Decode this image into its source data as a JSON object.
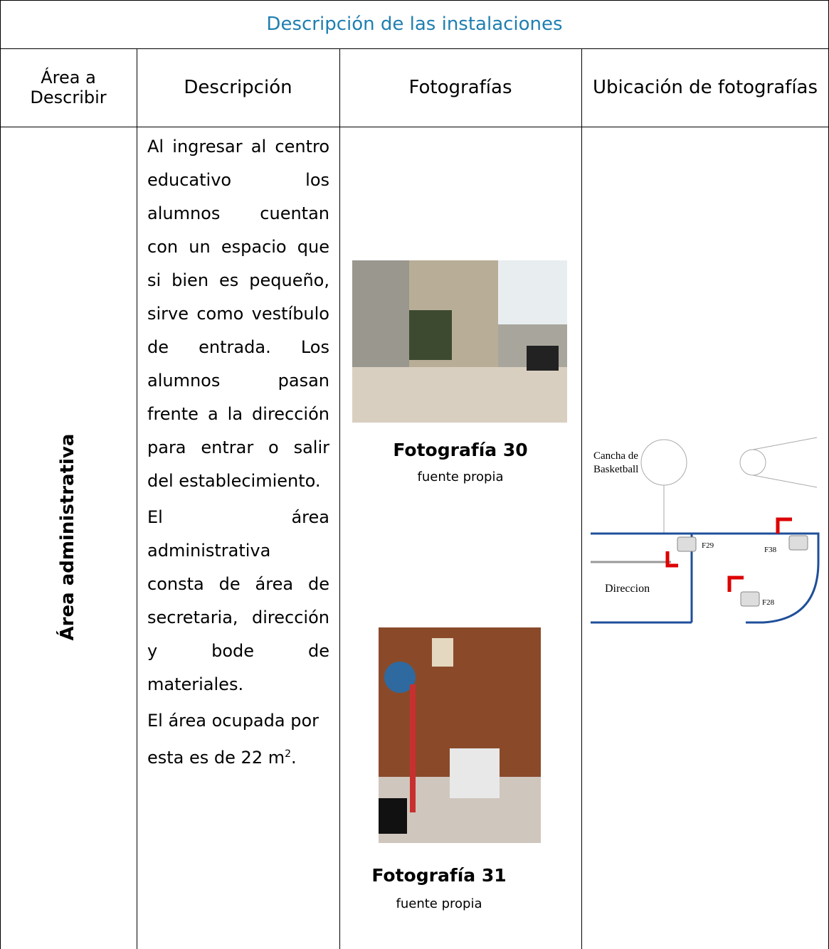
{
  "table": {
    "title": "Descripción de las instalaciones",
    "headers": [
      "Área a Describir",
      "Descripción",
      "Fotografías",
      "Ubicación de fotografías"
    ],
    "rows": [
      {
        "area": "Área administrativa",
        "description": [
          {
            "text": "Al ingresar al centro educativo los alumnos cuentan con un espacio que si bien es pequeño, sirve como vestíbulo de entrada. Los alumnos pasan frente a la dirección para entrar o salir del establecimiento."
          },
          {
            "text": "El área administrativa consta de área de secretaria, dirección y bode de materiales."
          },
          {
            "text": "El área ocupada por esta es de 22 m",
            "superscript": "2",
            "end": "."
          }
        ],
        "photos": [
          {
            "caption": "Fotografía 30",
            "source": "fuente propia"
          },
          {
            "caption": "Fotografía 31",
            "source": "fuente propia"
          }
        ],
        "map": {
          "labels": [
            "Cancha de",
            "Basketball",
            "Direccion"
          ],
          "markers": [
            "F29",
            "F38",
            "F28"
          ]
        }
      }
    ]
  }
}
